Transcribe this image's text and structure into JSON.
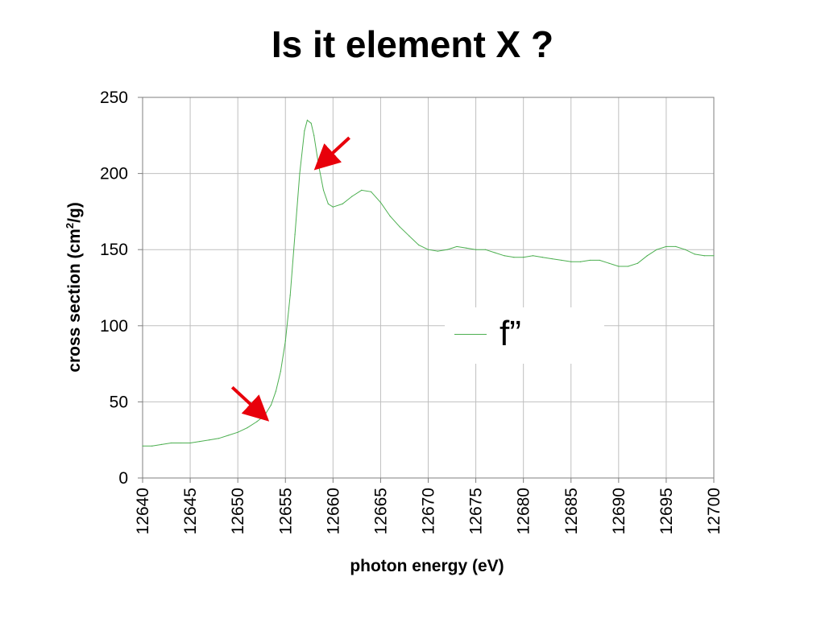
{
  "slide": {
    "title": "Is it element X ?"
  },
  "chart_data": {
    "type": "line",
    "xlabel": "photon energy (eV)",
    "ylabel_main": "cross section (cm",
    "ylabel_sup": "2",
    "ylabel_tail": "/g)",
    "xlim": [
      12640,
      12700
    ],
    "ylim": [
      0,
      250
    ],
    "xticks": [
      12640,
      12645,
      12650,
      12655,
      12660,
      12665,
      12670,
      12675,
      12680,
      12685,
      12690,
      12695,
      12700
    ],
    "yticks": [
      0,
      50,
      100,
      150,
      200,
      250
    ],
    "grid": true,
    "legend": {
      "label": "f”",
      "placement": "center-right"
    },
    "series": [
      {
        "name": "f”",
        "color": "#4caf50",
        "x": [
          12640,
          12641,
          12642,
          12643,
          12644,
          12645,
          12646,
          12647,
          12648,
          12649,
          12650,
          12651,
          12652,
          12652.8,
          12653.5,
          12654,
          12654.5,
          12655,
          12655.5,
          12656,
          12656.5,
          12657,
          12657.3,
          12657.7,
          12658,
          12658.5,
          12659,
          12659.5,
          12660,
          12661,
          12662,
          12663,
          12664,
          12665,
          12666,
          12667,
          12668,
          12669,
          12670,
          12671,
          12672,
          12673,
          12674,
          12675,
          12676,
          12677,
          12678,
          12679,
          12680,
          12681,
          12682,
          12683,
          12684,
          12685,
          12686,
          12687,
          12688,
          12689,
          12690,
          12691,
          12692,
          12693,
          12694,
          12695,
          12696,
          12697,
          12698,
          12699,
          12700
        ],
        "values": [
          21,
          21,
          22,
          23,
          23,
          23,
          24,
          25,
          26,
          28,
          30,
          33,
          37,
          41,
          48,
          57,
          70,
          90,
          120,
          160,
          200,
          228,
          235,
          233,
          225,
          205,
          189,
          180,
          178,
          180,
          185,
          189,
          188,
          181,
          172,
          165,
          159,
          153,
          150,
          149,
          150,
          152,
          151,
          150,
          150,
          148,
          146,
          145,
          145,
          146,
          145,
          144,
          143,
          142,
          142,
          143,
          143,
          141,
          139,
          139,
          141,
          146,
          150,
          152,
          152,
          150,
          147,
          146,
          146
        ]
      }
    ],
    "annotations": [
      {
        "type": "arrow",
        "color": "#e8000b",
        "x": 12652.8,
        "y": 40,
        "direction": "down-right"
      },
      {
        "type": "arrow",
        "color": "#e8000b",
        "x": 12658.5,
        "y": 205,
        "direction": "down-left"
      }
    ]
  }
}
